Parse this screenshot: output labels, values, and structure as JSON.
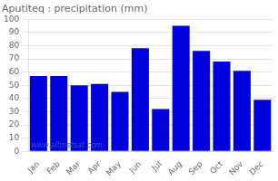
{
  "chart_data": {
    "type": "bar",
    "title": "Aputiteq : precipitation (mm)",
    "categories": [
      "Jan",
      "Feb",
      "Mar",
      "Apr",
      "May",
      "Jun",
      "Jul",
      "Aug",
      "Sep",
      "Oct",
      "Nov",
      "Dec"
    ],
    "values": [
      57,
      57,
      50,
      51,
      45,
      78,
      32,
      95,
      76,
      68,
      61,
      39
    ],
    "color": "#0000dd",
    "ylim": [
      0,
      100
    ],
    "yticks": [
      0,
      10,
      20,
      30,
      40,
      50,
      60,
      70,
      80,
      90,
      100
    ],
    "grid": true,
    "annotations": [
      "www.allmetsat.com"
    ]
  }
}
